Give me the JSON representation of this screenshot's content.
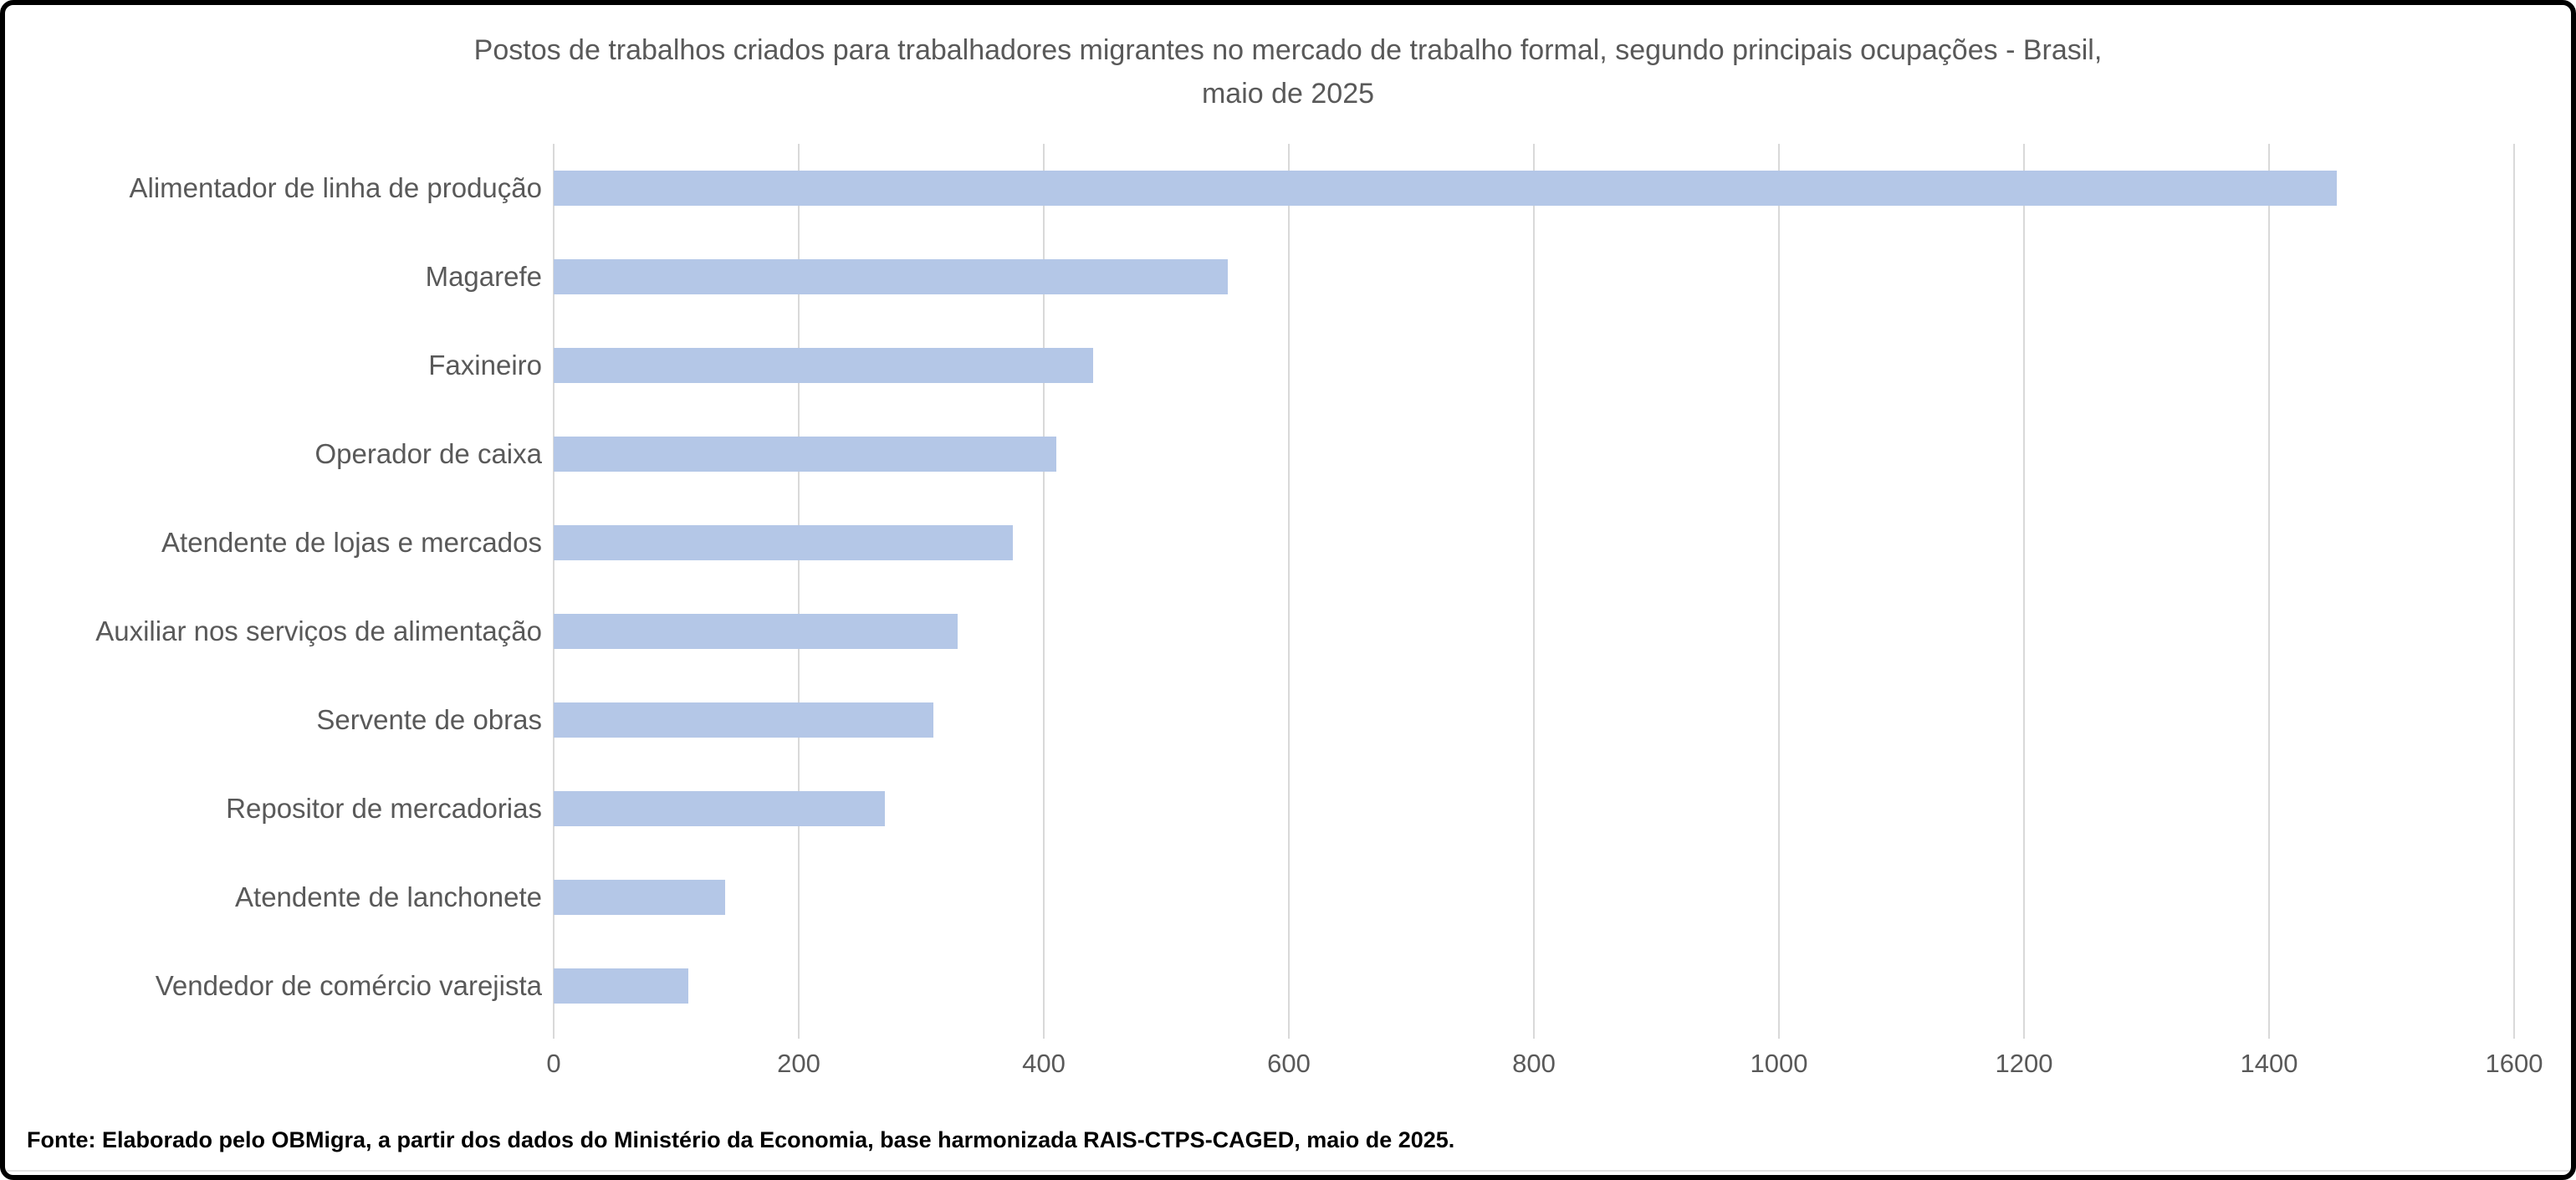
{
  "chart_data": {
    "type": "bar",
    "orientation": "horizontal",
    "title": "Postos de trabalhos criados para trabalhadores migrantes no mercado de trabalho formal,  segundo principais ocupações - Brasil, maio de 2025",
    "title_line1": "Postos de trabalhos criados para trabalhadores migrantes no mercado de trabalho formal,  segundo principais ocupações - Brasil,",
    "title_line2": "maio de 2025",
    "categories": [
      "Alimentador de linha de produção",
      "Magarefe",
      "Faxineiro",
      "Operador de caixa",
      "Atendente de lojas e mercados",
      "Auxiliar nos serviços de alimentação",
      "Servente de obras",
      "Repositor de mercadorias",
      "Atendente de lanchonete",
      "Vendedor de comércio varejista"
    ],
    "values": [
      1455,
      550,
      440,
      410,
      375,
      330,
      310,
      270,
      140,
      110
    ],
    "xlabel": "",
    "ylabel": "",
    "xlim": [
      0,
      1600
    ],
    "x_ticks": [
      0,
      200,
      400,
      600,
      800,
      1000,
      1200,
      1400,
      1600
    ],
    "grid": "vertical-only",
    "legend": "none",
    "bar_color": "#b4c7e7",
    "gridline_color": "#d9d9d9",
    "text_color": "#595959"
  },
  "footer": {
    "source": "Fonte: Elaborado pelo OBMigra, a partir dos dados do Ministério da Economia, base harmonizada RAIS-CTPS-CAGED, maio de 2025."
  }
}
